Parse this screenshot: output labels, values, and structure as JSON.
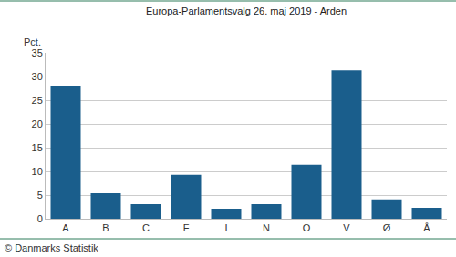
{
  "chart_data": {
    "type": "bar",
    "title": "Europa-Parlamentsvalg 26. maj 2019 - Arden",
    "y_label": "Pct.",
    "annotations": [
      "© Danmarks Statistik"
    ],
    "categories": [
      "A",
      "B",
      "C",
      "F",
      "I",
      "N",
      "O",
      "V",
      "Ø",
      "Å"
    ],
    "values": [
      28.1,
      5.4,
      3.1,
      9.3,
      2.1,
      3.1,
      11.4,
      31.3,
      4.1,
      2.3
    ],
    "color": "#1a5e8c",
    "ylim": [
      0,
      35
    ],
    "yticks": [
      0,
      5,
      10,
      15,
      20,
      25,
      30,
      35
    ],
    "grid": true
  }
}
